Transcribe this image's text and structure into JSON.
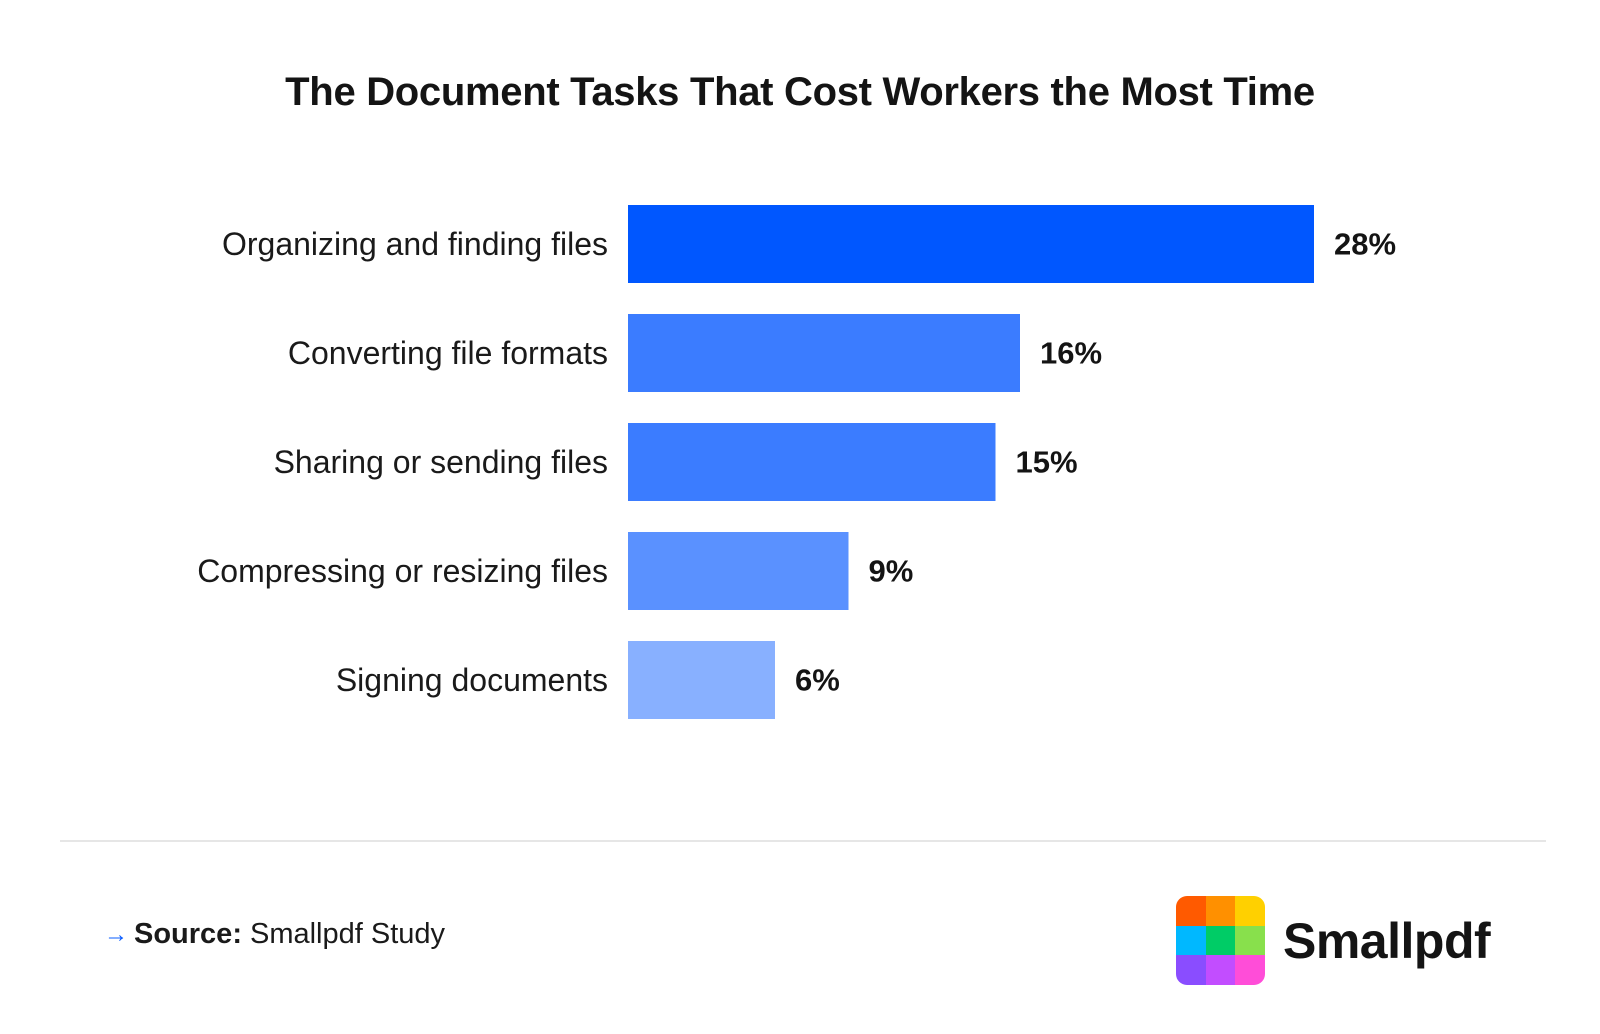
{
  "title": "The Document Tasks That Cost Workers the Most Time",
  "chart_data": {
    "type": "bar",
    "orientation": "horizontal",
    "title": "The Document Tasks That Cost Workers the Most Time",
    "categories": [
      "Organizing and finding files",
      "Converting file formats",
      "Sharing or sending files",
      "Compressing or resizing files",
      "Signing documents"
    ],
    "values": [
      28,
      16,
      15,
      9,
      6
    ],
    "value_labels": [
      "28%",
      "16%",
      "15%",
      "9%",
      "6%"
    ],
    "bar_colors": [
      "#0057ff",
      "#3b7cff",
      "#3b7cff",
      "#5a91ff",
      "#88b0ff"
    ],
    "unit": "%",
    "grid": false,
    "legend": "none"
  },
  "source": {
    "arrow": "→",
    "label": "Source:",
    "text": "Smallpdf Study"
  },
  "brand": {
    "name": "Smallpdf",
    "logo_colors": [
      "#ff5a00",
      "#ff9000",
      "#ffd000",
      "#00b8ff",
      "#00cc66",
      "#88e04c",
      "#8a4dff",
      "#c24dff",
      "#ff4dd8"
    ]
  }
}
